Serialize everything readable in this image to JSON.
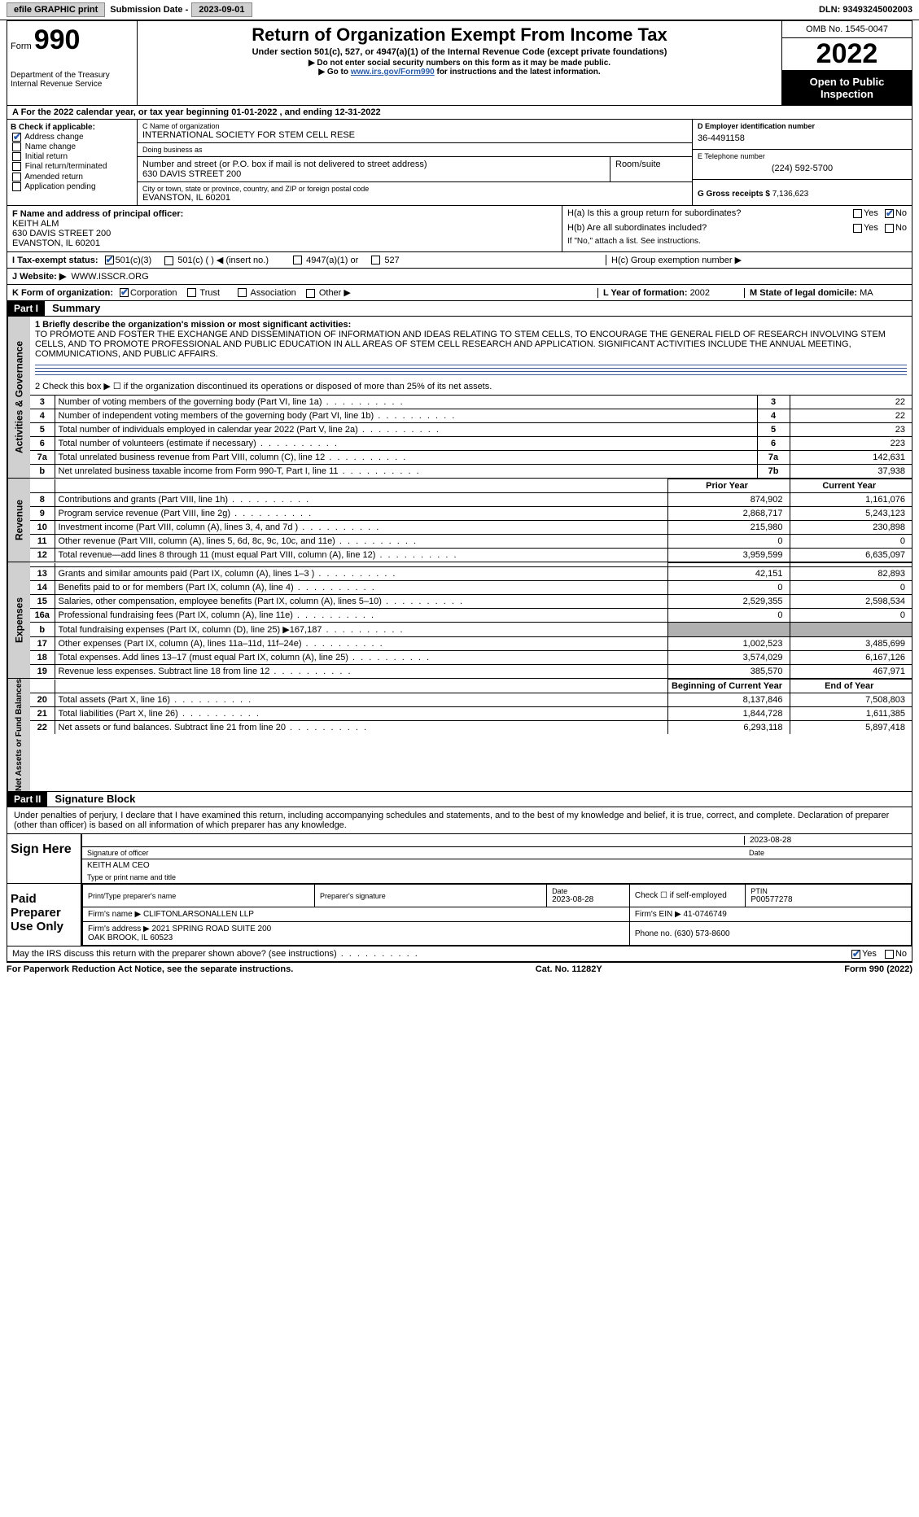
{
  "topbar": {
    "efile": "efile GRAPHIC print",
    "sub_label": "Submission Date - ",
    "sub_date": "2023-09-01",
    "dln_label": "DLN: ",
    "dln": "93493245002003"
  },
  "header": {
    "form_label": "Form",
    "form_num": "990",
    "dept": "Department of the Treasury\nInternal Revenue Service",
    "title": "Return of Organization Exempt From Income Tax",
    "subtitle": "Under section 501(c), 527, or 4947(a)(1) of the Internal Revenue Code (except private foundations)",
    "note1": "▶ Do not enter social security numbers on this form as it may be made public.",
    "note2_pre": "▶ Go to ",
    "note2_link": "www.irs.gov/Form990",
    "note2_post": " for instructions and the latest information.",
    "omb": "OMB No. 1545-0047",
    "year": "2022",
    "open": "Open to Public Inspection"
  },
  "lineA": {
    "text_pre": "A For the 2022 calendar year, or tax year beginning ",
    "begin": "01-01-2022",
    "mid": " , and ending ",
    "end": "12-31-2022"
  },
  "colB": {
    "label": "B Check if applicable:",
    "addr_change": "Address change",
    "name_change": "Name change",
    "initial": "Initial return",
    "final": "Final return/terminated",
    "amended": "Amended return",
    "app_pending": "Application pending",
    "addr_checked": true
  },
  "colC": {
    "name_lbl": "C Name of organization",
    "name": "INTERNATIONAL SOCIETY FOR STEM CELL RESE",
    "dba_lbl": "Doing business as",
    "dba": "",
    "street_lbl": "Number and street (or P.O. box if mail is not delivered to street address)",
    "street": "630 DAVIS STREET 200",
    "room_lbl": "Room/suite",
    "room": "",
    "city_lbl": "City or town, state or province, country, and ZIP or foreign postal code",
    "city": "EVANSTON, IL  60201"
  },
  "colD": {
    "ein_lbl": "D Employer identification number",
    "ein": "36-4491158",
    "phone_lbl": "E Telephone number",
    "phone": "(224) 592-5700",
    "gross_lbl": "G Gross receipts $ ",
    "gross": "7,136,623"
  },
  "officer": {
    "lbl": "F Name and address of principal officer:",
    "name": "KEITH ALM",
    "addr1": "630 DAVIS STREET 200",
    "addr2": "EVANSTON, IL  60201"
  },
  "H": {
    "a_lbl": "H(a)  Is this a group return for subordinates?",
    "a_yes": "Yes",
    "a_no": "No",
    "a_no_checked": true,
    "b_lbl": "H(b)  Are all subordinates included?",
    "b_note": "If \"No,\" attach a list. See instructions.",
    "c_lbl": "H(c)  Group exemption number ▶"
  },
  "I": {
    "lbl": "I  Tax-exempt status:",
    "c3": "501(c)(3)",
    "c3_checked": true,
    "c": "501(c) (  ) ◀ (insert no.)",
    "a1": "4947(a)(1) or",
    "527": "527"
  },
  "J": {
    "lbl": "J  Website: ▶",
    "val": "WWW.ISSCR.ORG"
  },
  "K": {
    "lbl": "K Form of organization:",
    "corp": "Corporation",
    "corp_checked": true,
    "trust": "Trust",
    "assoc": "Association",
    "other": "Other ▶"
  },
  "L": {
    "lbl": "L Year of formation: ",
    "val": "2002"
  },
  "M": {
    "lbl": "M State of legal domicile: ",
    "val": "MA"
  },
  "part1": {
    "hdr": "Part I",
    "title": "Summary",
    "vtab_ag": "Activities & Governance",
    "vtab_rev": "Revenue",
    "vtab_exp": "Expenses",
    "vtab_na": "Net Assets or Fund Balances",
    "q1_lbl": "1  Briefly describe the organization's mission or most significant activities:",
    "q1_txt": "TO PROMOTE AND FOSTER THE EXCHANGE AND DISSEMINATION OF INFORMATION AND IDEAS RELATING TO STEM CELLS, TO ENCOURAGE THE GENERAL FIELD OF RESEARCH INVOLVING STEM CELLS, AND TO PROMOTE PROFESSIONAL AND PUBLIC EDUCATION IN ALL AREAS OF STEM CELL RESEARCH AND APPLICATION. SIGNIFICANT ACTIVITIES INCLUDE THE ANNUAL MEETING, COMMUNICATIONS, AND PUBLIC AFFAIRS.",
    "q2": "2   Check this box ▶ ☐ if the organization discontinued its operations or disposed of more than 25% of its net assets.",
    "rows_ag": [
      {
        "n": "3",
        "t": "Number of voting members of the governing body (Part VI, line 1a)",
        "box": "3",
        "v": "22"
      },
      {
        "n": "4",
        "t": "Number of independent voting members of the governing body (Part VI, line 1b)",
        "box": "4",
        "v": "22"
      },
      {
        "n": "5",
        "t": "Total number of individuals employed in calendar year 2022 (Part V, line 2a)",
        "box": "5",
        "v": "23"
      },
      {
        "n": "6",
        "t": "Total number of volunteers (estimate if necessary)",
        "box": "6",
        "v": "223"
      },
      {
        "n": "7a",
        "t": "Total unrelated business revenue from Part VIII, column (C), line 12",
        "box": "7a",
        "v": "142,631"
      },
      {
        "n": "b",
        "t": "Net unrelated business taxable income from Form 990-T, Part I, line 11",
        "box": "7b",
        "v": "37,938"
      }
    ],
    "col_prior": "Prior Year",
    "col_current": "Current Year",
    "rows_rev": [
      {
        "n": "8",
        "t": "Contributions and grants (Part VIII, line 1h)",
        "p": "874,902",
        "c": "1,161,076"
      },
      {
        "n": "9",
        "t": "Program service revenue (Part VIII, line 2g)",
        "p": "2,868,717",
        "c": "5,243,123"
      },
      {
        "n": "10",
        "t": "Investment income (Part VIII, column (A), lines 3, 4, and 7d )",
        "p": "215,980",
        "c": "230,898"
      },
      {
        "n": "11",
        "t": "Other revenue (Part VIII, column (A), lines 5, 6d, 8c, 9c, 10c, and 11e)",
        "p": "0",
        "c": "0"
      },
      {
        "n": "12",
        "t": "Total revenue—add lines 8 through 11 (must equal Part VIII, column (A), line 12)",
        "p": "3,959,599",
        "c": "6,635,097"
      }
    ],
    "rows_exp": [
      {
        "n": "13",
        "t": "Grants and similar amounts paid (Part IX, column (A), lines 1–3 )",
        "p": "42,151",
        "c": "82,893"
      },
      {
        "n": "14",
        "t": "Benefits paid to or for members (Part IX, column (A), line 4)",
        "p": "0",
        "c": "0"
      },
      {
        "n": "15",
        "t": "Salaries, other compensation, employee benefits (Part IX, column (A), lines 5–10)",
        "p": "2,529,355",
        "c": "2,598,534"
      },
      {
        "n": "16a",
        "t": "Professional fundraising fees (Part IX, column (A), line 11e)",
        "p": "0",
        "c": "0"
      },
      {
        "n": "b",
        "t": "Total fundraising expenses (Part IX, column (D), line 25) ▶167,187",
        "p": "",
        "c": "",
        "shaded": true
      },
      {
        "n": "17",
        "t": "Other expenses (Part IX, column (A), lines 11a–11d, 11f–24e)",
        "p": "1,002,523",
        "c": "3,485,699"
      },
      {
        "n": "18",
        "t": "Total expenses. Add lines 13–17 (must equal Part IX, column (A), line 25)",
        "p": "3,574,029",
        "c": "6,167,126"
      },
      {
        "n": "19",
        "t": "Revenue less expenses. Subtract line 18 from line 12",
        "p": "385,570",
        "c": "467,971"
      }
    ],
    "col_begin": "Beginning of Current Year",
    "col_end": "End of Year",
    "rows_na": [
      {
        "n": "20",
        "t": "Total assets (Part X, line 16)",
        "p": "8,137,846",
        "c": "7,508,803"
      },
      {
        "n": "21",
        "t": "Total liabilities (Part X, line 26)",
        "p": "1,844,728",
        "c": "1,611,385"
      },
      {
        "n": "22",
        "t": "Net assets or fund balances. Subtract line 21 from line 20",
        "p": "6,293,118",
        "c": "5,897,418"
      }
    ]
  },
  "part2": {
    "hdr": "Part II",
    "title": "Signature Block",
    "perjury": "Under penalties of perjury, I declare that I have examined this return, including accompanying schedules and statements, and to the best of my knowledge and belief, it is true, correct, and complete. Declaration of preparer (other than officer) is based on all information of which preparer has any knowledge.",
    "sign_here": "Sign Here",
    "sig_officer": "Signature of officer",
    "sig_date": "2023-08-28",
    "date_lbl": "Date",
    "officer_name": "KEITH ALM CEO",
    "type_name_lbl": "Type or print name and title",
    "paid_prep": "Paid Preparer Use Only",
    "prep_name_lbl": "Print/Type preparer's name",
    "prep_sig_lbl": "Preparer's signature",
    "prep_date": "2023-08-28",
    "self_emp": "Check ☐ if self-employed",
    "ptin_lbl": "PTIN",
    "ptin": "P00577278",
    "firm_name_lbl": "Firm's name ▶ ",
    "firm_name": "CLIFTONLARSONALLEN LLP",
    "firm_ein_lbl": "Firm's EIN ▶ ",
    "firm_ein": "41-0746749",
    "firm_addr_lbl": "Firm's address ▶ ",
    "firm_addr": "2021 SPRING ROAD SUITE 200\nOAK BROOK, IL  60523",
    "firm_phone_lbl": "Phone no. ",
    "firm_phone": "(630) 573-8600",
    "discuss": "May the IRS discuss this return with the preparer shown above? (see instructions)",
    "yes": "Yes",
    "no": "No",
    "yes_checked": true
  },
  "footer": {
    "left": "For Paperwork Reduction Act Notice, see the separate instructions.",
    "mid": "Cat. No. 11282Y",
    "right": "Form 990 (2022)"
  }
}
